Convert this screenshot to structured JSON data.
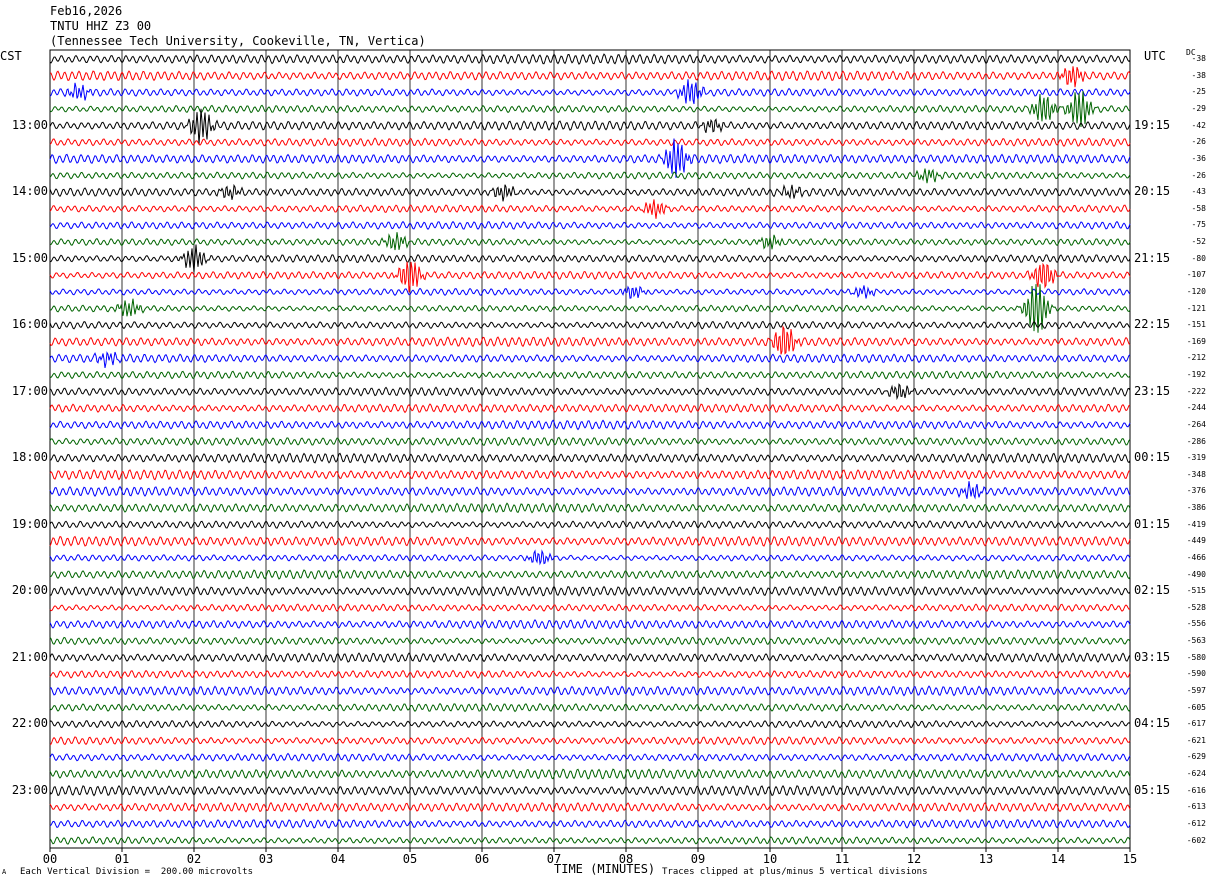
{
  "header": {
    "date": "Feb16,2026",
    "station": "TNTU HHZ Z3 00",
    "location": "(Tennessee Tech University, Cookeville, TN, Vertica)"
  },
  "left_corner": "CST",
  "right_corner": "UTC",
  "dc_label": "DC",
  "footer": {
    "scale": "Each Vertical Division =  200.00 microvolts",
    "clip": "Traces clipped at plus/minus 5 vertical divisions",
    "mark": "A"
  },
  "colors": [
    "#000000",
    "#ff0000",
    "#0000ff",
    "#006400"
  ],
  "chart_data": {
    "type": "line",
    "xlabel": "TIME (MINUTES)",
    "x_ticks": [
      "00",
      "01",
      "02",
      "03",
      "04",
      "05",
      "06",
      "07",
      "08",
      "09",
      "10",
      "11",
      "12",
      "13",
      "14",
      "15"
    ],
    "xlim": [
      0,
      15
    ],
    "trace_count": 48,
    "trace_minutes": 15,
    "left_hour_labels": [
      "13:00",
      "14:00",
      "15:00",
      "16:00",
      "17:00",
      "18:00",
      "19:00",
      "20:00",
      "21:00",
      "22:00",
      "23:00"
    ],
    "right_hour_labels": [
      "19:15",
      "20:15",
      "21:15",
      "22:15",
      "23:15",
      "00:15",
      "01:15",
      "02:15",
      "03:15",
      "04:15",
      "05:15"
    ],
    "dc_offsets": [
      "-38",
      "-38",
      "-25",
      "-29",
      "-42",
      "-26",
      "-36",
      "-26",
      "-43",
      "-58",
      "-75",
      "-52",
      "-80",
      "-107",
      "-120",
      "-121",
      "-151",
      "-169",
      "-212",
      "-192",
      "-222",
      "-244",
      "-264",
      "-286",
      "-319",
      "-348",
      "-376",
      "-386",
      "-419",
      "-449",
      "-466",
      "-490",
      "-515",
      "-528",
      "-556",
      "-563",
      "-580",
      "-590",
      "-597",
      "-605",
      "-617",
      "-621",
      "-629",
      "-624",
      "-616",
      "-613",
      "-612",
      "-602"
    ],
    "events": [
      {
        "trace": 1,
        "minute": 14.2,
        "amp": 10
      },
      {
        "trace": 2,
        "minute": 0.4,
        "amp": 7
      },
      {
        "trace": 2,
        "minute": 8.9,
        "amp": 12
      },
      {
        "trace": 3,
        "minute": 13.8,
        "amp": 14
      },
      {
        "trace": 3,
        "minute": 14.3,
        "amp": 18
      },
      {
        "trace": 4,
        "minute": 2.1,
        "amp": 16
      },
      {
        "trace": 4,
        "minute": 9.2,
        "amp": 6
      },
      {
        "trace": 6,
        "minute": 8.7,
        "amp": 18
      },
      {
        "trace": 7,
        "minute": 12.2,
        "amp": 6
      },
      {
        "trace": 8,
        "minute": 2.5,
        "amp": 6
      },
      {
        "trace": 8,
        "minute": 6.3,
        "amp": 7
      },
      {
        "trace": 8,
        "minute": 10.3,
        "amp": 5
      },
      {
        "trace": 9,
        "minute": 8.4,
        "amp": 8
      },
      {
        "trace": 11,
        "minute": 4.8,
        "amp": 8
      },
      {
        "trace": 11,
        "minute": 10.0,
        "amp": 6
      },
      {
        "trace": 12,
        "minute": 2.0,
        "amp": 12
      },
      {
        "trace": 13,
        "minute": 5.0,
        "amp": 16
      },
      {
        "trace": 13,
        "minute": 13.8,
        "amp": 14
      },
      {
        "trace": 14,
        "minute": 8.1,
        "amp": 6
      },
      {
        "trace": 14,
        "minute": 11.3,
        "amp": 5
      },
      {
        "trace": 15,
        "minute": 1.1,
        "amp": 8
      },
      {
        "trace": 15,
        "minute": 13.7,
        "amp": 26
      },
      {
        "trace": 17,
        "minute": 10.2,
        "amp": 16
      },
      {
        "trace": 18,
        "minute": 0.8,
        "amp": 6
      },
      {
        "trace": 20,
        "minute": 11.8,
        "amp": 7
      },
      {
        "trace": 26,
        "minute": 12.8,
        "amp": 7
      },
      {
        "trace": 30,
        "minute": 6.8,
        "amp": 7
      }
    ]
  }
}
